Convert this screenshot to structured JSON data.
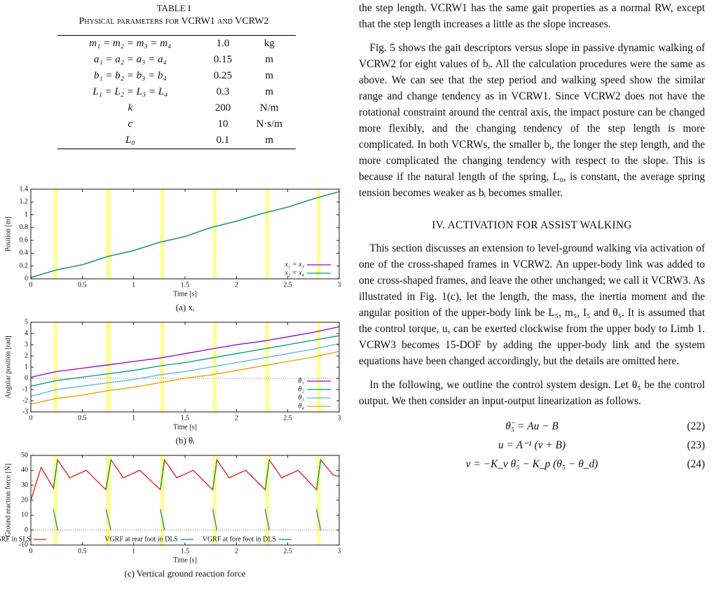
{
  "table": {
    "title": "TABLE I",
    "caption": "Physical parameters for VCRW1 and VCRW2",
    "rows": [
      [
        "m₁ = m₂ = m₃ = m₄",
        "1.0",
        "kg"
      ],
      [
        "a₁ = a₂ = a₃ = a₄",
        "0.15",
        "m"
      ],
      [
        "b₁ = b₂ = b₃ = b₄",
        "0.25",
        "m"
      ],
      [
        "L₁ = L₂ = L₃ = L₄",
        "0.3",
        "m"
      ],
      [
        "k",
        "200",
        "N/m"
      ],
      [
        "c",
        "10",
        "N·s/m"
      ],
      [
        "L₀",
        "0.1",
        "m"
      ]
    ]
  },
  "figure": {
    "bands": [
      [
        0.22,
        0.26
      ],
      [
        0.73,
        0.78
      ],
      [
        1.26,
        1.3
      ],
      [
        1.77,
        1.81
      ],
      [
        2.28,
        2.32
      ],
      [
        2.78,
        2.82
      ]
    ],
    "panels": [
      {
        "caption": "(a) xᵢ",
        "chart_data": {
          "type": "line",
          "xlabel": "Time [s]",
          "ylabel": "Position [m]",
          "x": [
            0,
            0.25,
            0.5,
            0.75,
            1,
            1.25,
            1.5,
            1.75,
            2,
            2.25,
            2.5,
            2.75,
            3
          ],
          "series": [
            {
              "name": "x₁ = x₃",
              "color": "#9400d3",
              "values": [
                0.02,
                0.14,
                0.22,
                0.35,
                0.44,
                0.57,
                0.66,
                0.8,
                0.9,
                1.02,
                1.12,
                1.25,
                1.36
              ]
            },
            {
              "name": "x₂ = x₄",
              "color": "#009e73",
              "values": [
                0.02,
                0.14,
                0.22,
                0.35,
                0.44,
                0.57,
                0.66,
                0.8,
                0.9,
                1.02,
                1.12,
                1.25,
                1.36
              ]
            }
          ],
          "xlim": [
            0,
            3
          ],
          "xticks": [
            0,
            0.5,
            1,
            1.5,
            2,
            2.5,
            3
          ],
          "ylim": [
            0,
            1.4
          ],
          "yticks": [
            0,
            0.2,
            0.4,
            0.6,
            0.8,
            1,
            1.2,
            1.4
          ],
          "legend": "lower right",
          "zero_line": false
        }
      },
      {
        "caption": "(b) θᵢ",
        "chart_data": {
          "type": "line",
          "xlabel": "Time [s]",
          "ylabel": "Angular position [rad]",
          "x": [
            0,
            0.25,
            0.5,
            0.75,
            1,
            1.25,
            1.5,
            1.75,
            2,
            2.25,
            2.5,
            2.75,
            3
          ],
          "series": [
            {
              "name": "θ₁",
              "color": "#9400d3",
              "values": [
                0.1,
                0.6,
                0.9,
                1.2,
                1.5,
                1.8,
                2.2,
                2.6,
                3.0,
                3.3,
                3.7,
                4.1,
                4.6
              ]
            },
            {
              "name": "θ₂",
              "color": "#009e73",
              "values": [
                -0.7,
                -0.2,
                0.1,
                0.4,
                0.7,
                1.1,
                1.4,
                1.8,
                2.2,
                2.6,
                3.0,
                3.4,
                3.8
              ]
            },
            {
              "name": "θ₃",
              "color": "#56b4e9",
              "values": [
                -1.6,
                -1.0,
                -0.7,
                -0.4,
                -0.1,
                0.3,
                0.6,
                1.0,
                1.4,
                1.8,
                2.2,
                2.6,
                3.1
              ]
            },
            {
              "name": "θ₄",
              "color": "#e69f00",
              "values": [
                -2.3,
                -1.8,
                -1.5,
                -1.1,
                -0.8,
                -0.4,
                0.0,
                0.3,
                0.7,
                1.1,
                1.5,
                1.9,
                2.4
              ]
            }
          ],
          "xlim": [
            0,
            3
          ],
          "xticks": [
            0,
            0.5,
            1,
            1.5,
            2,
            2.5,
            3
          ],
          "ylim": [
            -3,
            5
          ],
          "yticks": [
            -3,
            -2,
            -1,
            0,
            1,
            2,
            3,
            4,
            5
          ],
          "legend": "lower right",
          "zero_line": true
        }
      },
      {
        "caption": "(c) Vertical ground reaction force",
        "chart_data": {
          "type": "line",
          "xlabel": "Time [s]",
          "ylabel": "Ground reaction force [N]",
          "x": [
            0,
            0.1,
            0.22,
            0.26,
            0.38,
            0.54,
            0.73,
            0.78,
            0.9,
            1.06,
            1.26,
            1.3,
            1.42,
            1.58,
            1.77,
            1.81,
            1.93,
            2.09,
            2.28,
            2.32,
            2.44,
            2.6,
            2.78,
            2.82,
            2.94,
            3
          ],
          "series": [
            {
              "name": "VGRF in SLS",
              "color": "#e41a1c",
              "values": [
                20,
                42,
                28,
                47,
                35,
                40,
                27,
                47,
                35,
                40,
                27,
                47,
                35,
                40,
                27,
                47,
                35,
                40,
                27,
                47,
                35,
                40,
                27,
                47,
                37,
                36
              ]
            },
            {
              "name": "VGRF at rear foot in DLS",
              "color": "#1f78d4",
              "values": [
                null,
                null,
                14,
                0,
                null,
                null,
                14,
                0,
                null,
                null,
                14,
                0,
                null,
                null,
                14,
                0,
                null,
                null,
                14,
                0,
                null,
                null,
                14,
                0,
                null,
                null
              ]
            },
            {
              "name": "VGRF at fore foot in DLS",
              "color": "#009e3a",
              "values": [
                null,
                null,
                28,
                47,
                null,
                null,
                27,
                47,
                null,
                null,
                27,
                47,
                null,
                null,
                27,
                47,
                null,
                null,
                27,
                47,
                null,
                null,
                27,
                47,
                null,
                null
              ]
            }
          ],
          "xlim": [
            0,
            3
          ],
          "xticks": [
            0,
            0.5,
            1,
            1.5,
            2,
            2.5,
            3
          ],
          "ylim": [
            -10,
            50
          ],
          "yticks": [
            -10,
            0,
            10,
            20,
            30,
            40,
            50
          ],
          "legend": "bottom",
          "zero_line": true
        }
      }
    ]
  },
  "text": {
    "paragraphs_before": [
      "the step length. VCRW1 has the same gait properties as a normal RW, except that the step length increases a little as the slope increases.",
      "Fig. 5 shows the gait descriptors versus slope in passive dynamic walking of VCRW2 for eight values of bᵢ. All the calculation procedures were the same as above. We can see that the step period and walking speed show the similar range and change tendency as in VCRW1. Since VCRW2 does not have the rotational constraint around the central axis, the impact posture can be changed more flexibly, and the changing tendency of the step length is more complicated. In both VCRWs, the smaller bᵢ, the longer the step length, and the more complicated the changing tendency with respect to the slope. This is because if the natural length of the spring, L₀, is constant, the average spring tension becomes weaker as bᵢ becomes smaller."
    ],
    "heading": "IV. ACTIVATION FOR ASSIST WALKING",
    "paragraphs_after": [
      "This section discusses an extension to level-ground walking via activation of one of the cross-shaped frames in VCRW2. An upper-body link was added to one cross-shaped frames, and leave the other unchanged; we call it VCRW3. As illustrated in Fig. 1(c), let the length, the mass, the inertia moment and the angular position of the upper-body link be L₅, m₅, I₅ and θ₅. It is assumed that the control torque, u, can be exerted clockwise from the upper body to Limb 1. VCRW3 becomes 15-DOF by adding the upper-body link and the system equations have been changed accordingly, but the details are omitted here.",
      "In the following, we outline the control system design. Let θ₅ be the control output. We then consider an input-output linearization as follows."
    ],
    "equations": [
      {
        "expr": "θ̈₅ = Au − B",
        "number": "(22)"
      },
      {
        "expr": "u = A⁻¹ (v + B)",
        "number": "(23)"
      },
      {
        "expr": "v = −K_v θ̇₅ − K_p (θ₅ − θ_d)",
        "number": "(24)"
      }
    ]
  }
}
